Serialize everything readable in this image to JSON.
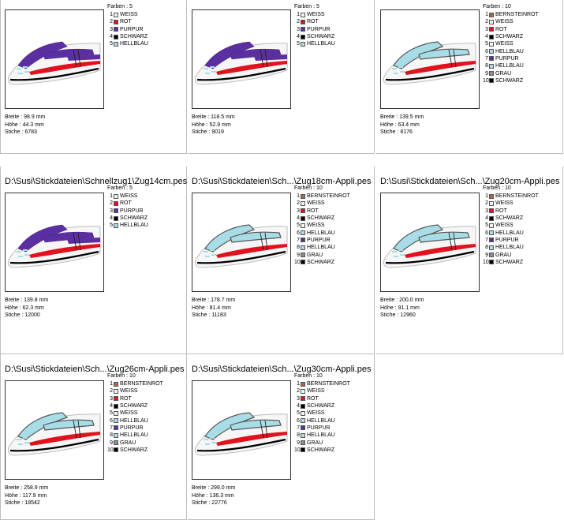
{
  "labels": {
    "farben": "Farben :",
    "breite": "Breite :",
    "hoehe": "Höhe :",
    "stiche": "Stiche :"
  },
  "palette": {
    "WEISS": "#f4f4f4",
    "ROT": "#e0121e",
    "PURPUR": "#5b2fa0",
    "SCHWARZ": "#000000",
    "HELLBLAU": "#a8dde8",
    "BERNSTEINROT": "#a8684a",
    "GRAU": "#8c8c8c"
  },
  "cards": [
    {
      "title": "",
      "farben_count": "5",
      "variant": "simple",
      "colors": [
        {
          "n": "1",
          "name": "WEISS"
        },
        {
          "n": "2",
          "name": "ROT"
        },
        {
          "n": "3",
          "name": "PURPUR"
        },
        {
          "n": "4",
          "name": "SCHWARZ"
        },
        {
          "n": "5",
          "name": "HELLBLAU"
        }
      ],
      "breite": "98.9 mm",
      "hoehe": "44.3 mm",
      "stiche": "6783"
    },
    {
      "title": "",
      "farben_count": "5",
      "variant": "simple",
      "colors": [
        {
          "n": "1",
          "name": "WEISS"
        },
        {
          "n": "2",
          "name": "ROT"
        },
        {
          "n": "3",
          "name": "PURPUR"
        },
        {
          "n": "4",
          "name": "SCHWARZ"
        },
        {
          "n": "5",
          "name": "HELLBLAU"
        }
      ],
      "breite": "118.5 mm",
      "hoehe": "52.9 mm",
      "stiche": "9019"
    },
    {
      "title": "",
      "farben_count": "10",
      "variant": "appli",
      "colors": [
        {
          "n": "1",
          "name": "BERNSTEINROT"
        },
        {
          "n": "2",
          "name": "WEISS"
        },
        {
          "n": "3",
          "name": "ROT"
        },
        {
          "n": "4",
          "name": "SCHWARZ"
        },
        {
          "n": "5",
          "name": "WEISS"
        },
        {
          "n": "6",
          "name": "HELLBLAU"
        },
        {
          "n": "7",
          "name": "PURPUR"
        },
        {
          "n": "8",
          "name": "HELLBLAU"
        },
        {
          "n": "9",
          "name": "GRAU"
        },
        {
          "n": "10",
          "name": "SCHWARZ"
        }
      ],
      "breite": "139.5 mm",
      "hoehe": "63.4 mm",
      "stiche": "8176"
    },
    {
      "title": "D:\\Susi\\Stickdateien\\Schnellzug1\\Zug14cm.pes",
      "farben_count": "5",
      "variant": "simple",
      "colors": [
        {
          "n": "1",
          "name": "WEISS"
        },
        {
          "n": "2",
          "name": "ROT"
        },
        {
          "n": "3",
          "name": "PURPUR"
        },
        {
          "n": "4",
          "name": "SCHWARZ"
        },
        {
          "n": "5",
          "name": "HELLBLAU"
        }
      ],
      "breite": "139.8 mm",
      "hoehe": "62.3 mm",
      "stiche": "12000"
    },
    {
      "title": "D:\\Susi\\Stickdateien\\Sch...\\Zug18cm-Appli.pes",
      "farben_count": "10",
      "variant": "appli",
      "colors": [
        {
          "n": "1",
          "name": "BERNSTEINROT"
        },
        {
          "n": "2",
          "name": "WEISS"
        },
        {
          "n": "3",
          "name": "ROT"
        },
        {
          "n": "4",
          "name": "SCHWARZ"
        },
        {
          "n": "5",
          "name": "WEISS"
        },
        {
          "n": "6",
          "name": "HELLBLAU"
        },
        {
          "n": "7",
          "name": "PURPUR"
        },
        {
          "n": "8",
          "name": "HELLBLAU"
        },
        {
          "n": "9",
          "name": "GRAU"
        },
        {
          "n": "10",
          "name": "SCHWARZ"
        }
      ],
      "breite": "178.7 mm",
      "hoehe": "81.4 mm",
      "stiche": "11183"
    },
    {
      "title": "D:\\Susi\\Stickdateien\\Sch...\\Zug20cm-Appli.pes",
      "farben_count": "10",
      "variant": "appli",
      "colors": [
        {
          "n": "1",
          "name": "BERNSTEINROT"
        },
        {
          "n": "2",
          "name": "WEISS"
        },
        {
          "n": "3",
          "name": "ROT"
        },
        {
          "n": "4",
          "name": "SCHWARZ"
        },
        {
          "n": "5",
          "name": "WEISS"
        },
        {
          "n": "6",
          "name": "HELLBLAU"
        },
        {
          "n": "7",
          "name": "PURPUR"
        },
        {
          "n": "8",
          "name": "HELLBLAU"
        },
        {
          "n": "9",
          "name": "GRAU"
        },
        {
          "n": "10",
          "name": "SCHWARZ"
        }
      ],
      "breite": "200.0 mm",
      "hoehe": "91.1 mm",
      "stiche": "12960"
    },
    {
      "title": "D:\\Susi\\Stickdateien\\Sch...\\Zug26cm-Appli.pes",
      "farben_count": "10",
      "variant": "appli",
      "colors": [
        {
          "n": "1",
          "name": "BERNSTEINROT"
        },
        {
          "n": "2",
          "name": "WEISS"
        },
        {
          "n": "3",
          "name": "ROT"
        },
        {
          "n": "4",
          "name": "SCHWARZ"
        },
        {
          "n": "5",
          "name": "WEISS"
        },
        {
          "n": "6",
          "name": "HELLBLAU"
        },
        {
          "n": "7",
          "name": "PURPUR"
        },
        {
          "n": "8",
          "name": "HELLBLAU"
        },
        {
          "n": "9",
          "name": "GRAU"
        },
        {
          "n": "10",
          "name": "SCHWARZ"
        }
      ],
      "breite": "258.9 mm",
      "hoehe": "117.9 mm",
      "stiche": "18542"
    },
    {
      "title": "D:\\Susi\\Stickdateien\\Sch...\\Zug30cm-Appli.pes",
      "farben_count": "10",
      "variant": "appli",
      "colors": [
        {
          "n": "1",
          "name": "BERNSTEINROT"
        },
        {
          "n": "2",
          "name": "WEISS"
        },
        {
          "n": "3",
          "name": "ROT"
        },
        {
          "n": "4",
          "name": "SCHWARZ"
        },
        {
          "n": "5",
          "name": "WEISS"
        },
        {
          "n": "6",
          "name": "HELLBLAU"
        },
        {
          "n": "7",
          "name": "PURPUR"
        },
        {
          "n": "8",
          "name": "HELLBLAU"
        },
        {
          "n": "9",
          "name": "GRAU"
        },
        {
          "n": "10",
          "name": "SCHWARZ"
        }
      ],
      "breite": "299.0 mm",
      "hoehe": "136.3 mm",
      "stiche": "22776"
    }
  ]
}
